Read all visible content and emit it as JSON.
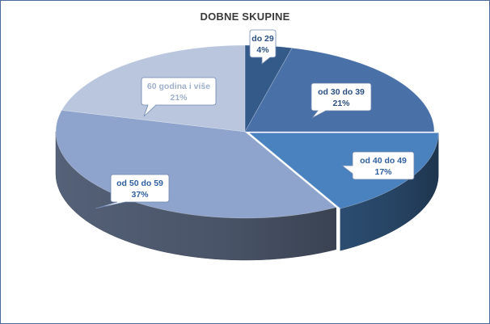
{
  "chart_data": {
    "type": "pie",
    "title": "DOBNE SKUPINE",
    "style": "3d-exploded-pie",
    "legend": "none",
    "series": [
      {
        "categories": [
          "do 29",
          "od 30  do 39",
          "od 40  do 49",
          "od 50  do 59",
          "60 godina i više"
        ],
        "values": [
          4,
          21,
          17,
          37,
          21
        ],
        "value_labels": [
          "4%",
          "21%",
          "17%",
          "37%",
          "21%"
        ],
        "colors": [
          "#345a8a",
          "#4a70a8",
          "#4a82c0",
          "#8fa4cc",
          "#b9c6de"
        ],
        "label_colors": [
          "#2a4f80",
          "#2a4f80",
          "#ffffff",
          "#ffffff",
          "#b0bed6"
        ]
      }
    ]
  }
}
